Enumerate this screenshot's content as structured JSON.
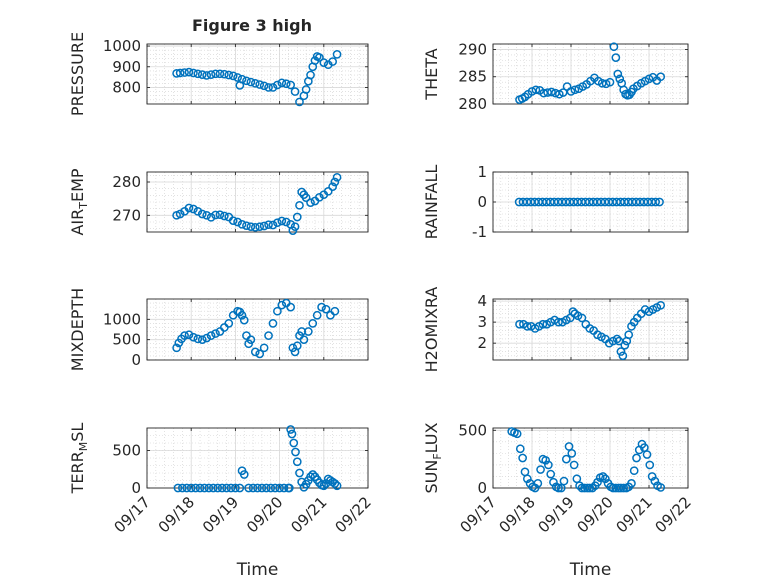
{
  "figure": {
    "title": "Figure 3 high",
    "marker_color": "#0072BD"
  },
  "chart_data": [
    {
      "type": "scatter",
      "ylabel": "PRESSURE",
      "xlabel": "",
      "x_range": [
        "09/17",
        "09/22"
      ],
      "ylim": [
        720,
        1010
      ],
      "yticks": [
        800,
        900,
        1000
      ],
      "xticks": [],
      "grid": true,
      "series": [
        {
          "x": [
            0.67,
            0.75,
            0.85,
            0.95,
            1.05,
            1.15,
            1.25,
            1.35,
            1.45,
            1.55,
            1.65,
            1.75,
            1.85,
            1.95,
            2.05,
            2.1,
            2.15,
            2.25,
            2.35,
            2.45,
            2.55,
            2.65,
            2.75,
            2.85,
            2.95,
            3.05,
            3.15,
            3.25,
            3.35,
            3.45,
            3.55,
            3.6,
            3.65,
            3.7,
            3.75,
            3.8,
            3.85,
            3.9,
            4.0,
            4.1,
            4.2,
            4.3
          ],
          "y": [
            868,
            870,
            872,
            874,
            870,
            866,
            862,
            858,
            862,
            866,
            866,
            864,
            860,
            856,
            848,
            810,
            840,
            832,
            826,
            820,
            814,
            808,
            800,
            800,
            812,
            822,
            818,
            812,
            780,
            730,
            760,
            790,
            830,
            860,
            900,
            930,
            950,
            945,
            920,
            910,
            925,
            960
          ]
        }
      ]
    },
    {
      "type": "scatter",
      "ylabel": "THETA",
      "xlabel": "",
      "x_range": [
        "09/17",
        "09/22"
      ],
      "ylim": [
        280,
        291
      ],
      "yticks": [
        280,
        285,
        290
      ],
      "xticks": [],
      "grid": true,
      "series": [
        {
          "x": [
            0.68,
            0.75,
            0.82,
            0.9,
            1.0,
            1.1,
            1.2,
            1.3,
            1.4,
            1.5,
            1.6,
            1.7,
            1.8,
            1.9,
            2.0,
            2.1,
            2.2,
            2.3,
            2.4,
            2.5,
            2.6,
            2.7,
            2.8,
            2.9,
            3.0,
            3.1,
            3.15,
            3.2,
            3.25,
            3.3,
            3.35,
            3.4,
            3.45,
            3.5,
            3.55,
            3.6,
            3.7,
            3.8,
            3.9,
            4.0,
            4.1,
            4.2,
            4.3
          ],
          "y": [
            280.8,
            281.0,
            281.3,
            281.8,
            282.3,
            282.6,
            282.5,
            282.0,
            282.1,
            282.2,
            282.0,
            281.8,
            282.1,
            283.2,
            282.3,
            282.6,
            282.8,
            283.2,
            283.6,
            284.2,
            284.8,
            284.2,
            283.8,
            283.7,
            284.0,
            290.5,
            288.5,
            285.5,
            284.6,
            283.8,
            282.6,
            281.8,
            281.6,
            281.7,
            282.2,
            282.8,
            283.3,
            283.8,
            284.2,
            284.6,
            284.9,
            284.3,
            285.0
          ]
        }
      ]
    },
    {
      "type": "scatter",
      "ylabel": "AIR_TEMP",
      "xlabel": "",
      "x_range": [
        "09/17",
        "09/22"
      ],
      "ylim": [
        265,
        283
      ],
      "yticks": [
        270,
        280
      ],
      "xticks": [],
      "grid": true,
      "series": [
        {
          "x": [
            0.67,
            0.75,
            0.85,
            0.95,
            1.05,
            1.15,
            1.25,
            1.35,
            1.45,
            1.55,
            1.65,
            1.75,
            1.85,
            1.95,
            2.05,
            2.15,
            2.25,
            2.35,
            2.45,
            2.55,
            2.65,
            2.75,
            2.85,
            2.95,
            3.05,
            3.15,
            3.25,
            3.3,
            3.35,
            3.4,
            3.45,
            3.5,
            3.55,
            3.6,
            3.7,
            3.8,
            3.9,
            4.0,
            4.1,
            4.2,
            4.25,
            4.3
          ],
          "y": [
            270.0,
            270.4,
            271.2,
            272.2,
            271.9,
            271.2,
            270.4,
            270.0,
            269.4,
            270.1,
            270.2,
            269.8,
            269.5,
            268.4,
            268.0,
            267.3,
            266.9,
            266.6,
            266.4,
            266.6,
            266.8,
            267.2,
            267.1,
            267.8,
            268.3,
            268.0,
            267.3,
            265.4,
            266.6,
            269.5,
            273.0,
            277.0,
            276.2,
            275.3,
            273.8,
            274.3,
            275.4,
            276.2,
            277.2,
            278.6,
            280.0,
            281.4
          ]
        }
      ]
    },
    {
      "type": "scatter",
      "ylabel": "RAINFALL",
      "xlabel": "",
      "x_range": [
        "09/17",
        "09/22"
      ],
      "ylim": [
        -1,
        1
      ],
      "yticks": [
        -1,
        0,
        1
      ],
      "xticks": [],
      "grid": true,
      "series": [
        {
          "x": [
            0.67,
            0.77,
            0.87,
            0.97,
            1.07,
            1.17,
            1.27,
            1.37,
            1.47,
            1.57,
            1.67,
            1.77,
            1.87,
            1.97,
            2.07,
            2.17,
            2.27,
            2.37,
            2.47,
            2.57,
            2.67,
            2.77,
            2.87,
            2.97,
            3.07,
            3.17,
            3.27,
            3.37,
            3.47,
            3.57,
            3.67,
            3.77,
            3.87,
            3.97,
            4.07,
            4.17,
            4.27
          ],
          "y": [
            0,
            0,
            0,
            0,
            0,
            0,
            0,
            0,
            0,
            0,
            0,
            0,
            0,
            0,
            0,
            0,
            0,
            0,
            0,
            0,
            0,
            0,
            0,
            0,
            0,
            0,
            0,
            0,
            0,
            0,
            0,
            0,
            0,
            0,
            0,
            0,
            0
          ]
        }
      ]
    },
    {
      "type": "scatter",
      "ylabel": "MIXDEPTH",
      "xlabel": "",
      "x_range": [
        "09/17",
        "09/22"
      ],
      "ylim": [
        0,
        1500
      ],
      "yticks": [
        0,
        500,
        1000
      ],
      "xticks": [],
      "grid": true,
      "series": [
        {
          "x": [
            0.67,
            0.72,
            0.78,
            0.85,
            0.95,
            1.05,
            1.15,
            1.25,
            1.35,
            1.45,
            1.55,
            1.65,
            1.75,
            1.85,
            1.95,
            2.05,
            2.1,
            2.15,
            2.2,
            2.25,
            2.3,
            2.35,
            2.45,
            2.55,
            2.65,
            2.75,
            2.85,
            2.95,
            3.05,
            3.15,
            3.25,
            3.3,
            3.35,
            3.4,
            3.45,
            3.5,
            3.55,
            3.65,
            3.75,
            3.85,
            3.95,
            4.05,
            4.15,
            4.25
          ],
          "y": [
            300,
            420,
            520,
            600,
            620,
            560,
            520,
            500,
            540,
            600,
            650,
            700,
            800,
            900,
            1100,
            1200,
            1180,
            1100,
            980,
            600,
            400,
            500,
            200,
            150,
            300,
            600,
            900,
            1200,
            1350,
            1400,
            1300,
            300,
            200,
            350,
            600,
            700,
            500,
            700,
            900,
            1100,
            1300,
            1250,
            1100,
            1200
          ]
        }
      ]
    },
    {
      "type": "scatter",
      "ylabel": "H2OMIXRA",
      "xlabel": "",
      "x_range": [
        "09/17",
        "09/22"
      ],
      "ylim": [
        1.2,
        4.1
      ],
      "yticks": [
        2,
        3,
        4
      ],
      "xticks": [],
      "grid": true,
      "series": [
        {
          "x": [
            0.68,
            0.78,
            0.88,
            0.98,
            1.08,
            1.18,
            1.28,
            1.38,
            1.48,
            1.58,
            1.68,
            1.78,
            1.88,
            1.98,
            2.05,
            2.1,
            2.18,
            2.28,
            2.38,
            2.48,
            2.58,
            2.68,
            2.78,
            2.88,
            2.98,
            3.08,
            3.18,
            3.23,
            3.28,
            3.33,
            3.38,
            3.43,
            3.48,
            3.55,
            3.62,
            3.7,
            3.8,
            3.9,
            4.0,
            4.1,
            4.2,
            4.3
          ],
          "y": [
            2.9,
            2.9,
            2.8,
            2.8,
            2.7,
            2.8,
            2.9,
            2.9,
            3.0,
            3.1,
            3.0,
            3.0,
            3.1,
            3.2,
            3.5,
            3.4,
            3.3,
            3.2,
            2.9,
            2.7,
            2.6,
            2.4,
            2.3,
            2.2,
            2.0,
            2.1,
            2.2,
            2.1,
            1.6,
            1.4,
            1.9,
            2.1,
            2.4,
            2.8,
            3.0,
            3.2,
            3.4,
            3.6,
            3.5,
            3.6,
            3.7,
            3.8
          ]
        }
      ]
    },
    {
      "type": "scatter",
      "ylabel": "TERR_MSL",
      "xlabel": "Time",
      "x_range": [
        "09/17",
        "09/22"
      ],
      "ylim": [
        0,
        800
      ],
      "yticks": [
        0,
        500
      ],
      "xticks": [
        "09/17",
        "09/18",
        "09/19",
        "09/20",
        "09/21",
        "09/22"
      ],
      "grid": true,
      "series": [
        {
          "x": [
            0.7,
            0.8,
            0.9,
            1.0,
            1.1,
            1.2,
            1.3,
            1.4,
            1.5,
            1.6,
            1.7,
            1.8,
            1.9,
            2.0,
            2.1,
            2.15,
            2.2,
            2.3,
            2.4,
            2.5,
            2.6,
            2.7,
            2.8,
            2.9,
            3.0,
            3.1,
            3.2,
            3.22,
            3.25,
            3.28,
            3.32,
            3.36,
            3.4,
            3.45,
            3.5,
            3.55,
            3.6,
            3.65,
            3.7,
            3.75,
            3.8,
            3.85,
            3.9,
            3.95,
            4.0,
            4.05,
            4.1,
            4.15,
            4.2,
            4.25,
            4.3
          ],
          "y": [
            0,
            0,
            0,
            0,
            0,
            0,
            0,
            0,
            0,
            0,
            0,
            0,
            0,
            0,
            0,
            230,
            180,
            0,
            0,
            0,
            0,
            0,
            0,
            0,
            0,
            0,
            0,
            0,
            780,
            720,
            600,
            480,
            350,
            200,
            80,
            10,
            50,
            100,
            150,
            180,
            150,
            110,
            70,
            40,
            30,
            60,
            120,
            100,
            80,
            60,
            30
          ]
        }
      ]
    },
    {
      "type": "scatter",
      "ylabel": "SUN_FLUX",
      "xlabel": "Time",
      "x_range": [
        "09/17",
        "09/22"
      ],
      "ylim": [
        0,
        520
      ],
      "yticks": [
        0,
        500
      ],
      "xticks": [
        "09/17",
        "09/18",
        "09/19",
        "09/20",
        "09/21",
        "09/22"
      ],
      "grid": true,
      "series": [
        {
          "x": [
            0.48,
            0.55,
            0.62,
            0.7,
            0.76,
            0.82,
            0.88,
            0.95,
            1.02,
            1.08,
            1.15,
            1.22,
            1.28,
            1.35,
            1.42,
            1.48,
            1.55,
            1.62,
            1.68,
            1.75,
            1.82,
            1.88,
            1.95,
            2.02,
            2.08,
            2.15,
            2.22,
            2.28,
            2.35,
            2.42,
            2.48,
            2.55,
            2.62,
            2.68,
            2.75,
            2.82,
            2.88,
            2.95,
            3.02,
            3.08,
            3.15,
            3.22,
            3.28,
            3.35,
            3.42,
            3.48,
            3.55,
            3.62,
            3.68,
            3.75,
            3.82,
            3.88,
            3.95,
            4.02,
            4.08,
            4.15,
            4.22,
            4.3
          ],
          "y": [
            490,
            480,
            470,
            340,
            260,
            140,
            80,
            40,
            10,
            0,
            40,
            160,
            250,
            240,
            200,
            120,
            50,
            10,
            0,
            0,
            60,
            250,
            360,
            300,
            200,
            80,
            20,
            0,
            0,
            0,
            0,
            0,
            20,
            50,
            90,
            100,
            80,
            40,
            10,
            0,
            0,
            0,
            0,
            0,
            0,
            10,
            40,
            150,
            260,
            330,
            380,
            350,
            290,
            200,
            100,
            60,
            20,
            5
          ]
        }
      ]
    }
  ]
}
